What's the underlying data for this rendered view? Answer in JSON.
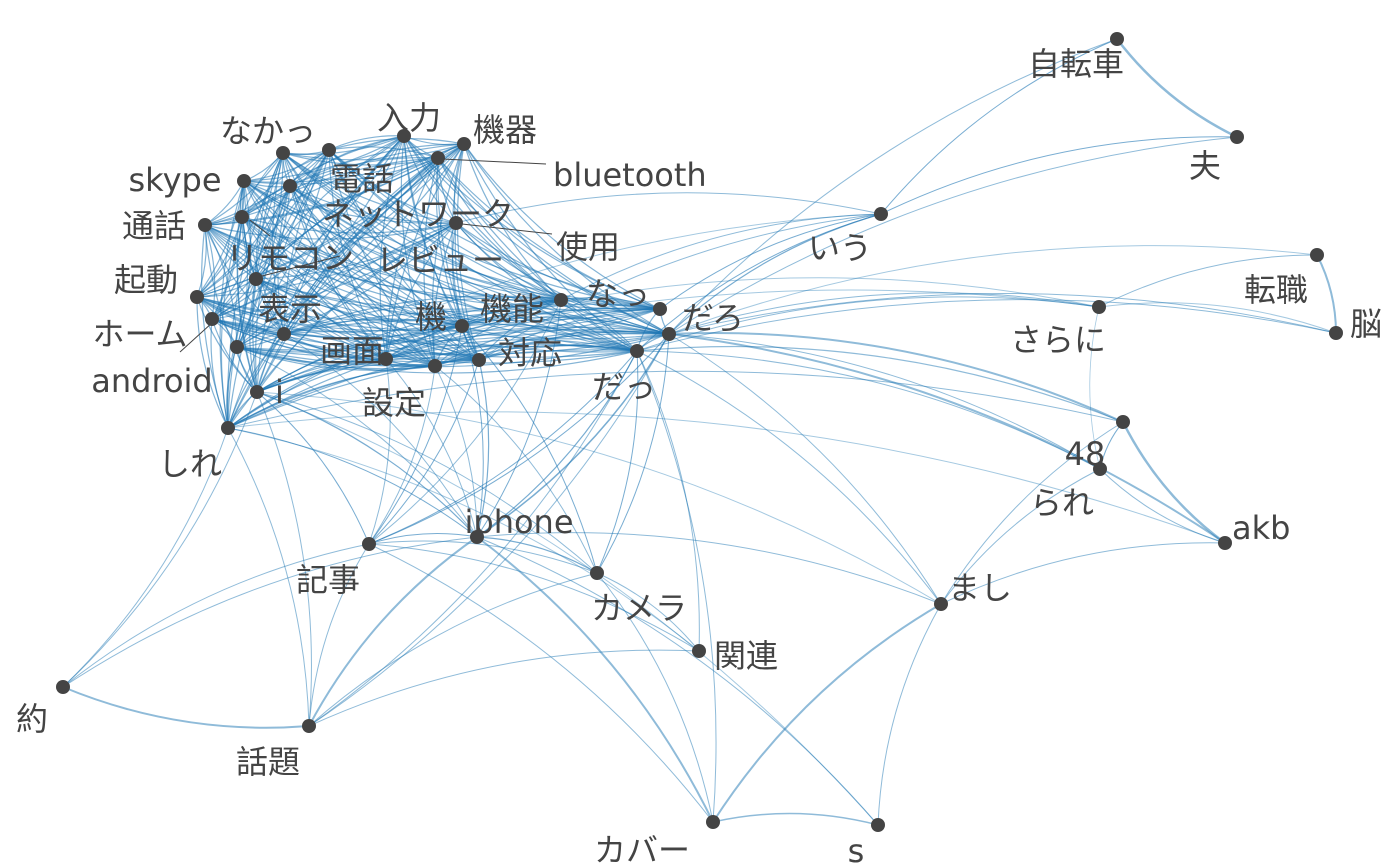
{
  "colors": {
    "edge": "#1f77b4",
    "node": "#444444",
    "label": "#444444",
    "background": "#ffffff"
  },
  "nodes": [
    {
      "id": "jitensha",
      "label": "自転車"
    },
    {
      "id": "otto",
      "label": "夫"
    },
    {
      "id": "iu",
      "label": "いう"
    },
    {
      "id": "noo",
      "label": "脳"
    },
    {
      "id": "tenshoku",
      "label": "転職"
    },
    {
      "id": "sarani",
      "label": "さらに"
    },
    {
      "id": "n48",
      "label": "48"
    },
    {
      "id": "rare",
      "label": "られ"
    },
    {
      "id": "akb",
      "label": "akb"
    },
    {
      "id": "mashi",
      "label": "まし"
    },
    {
      "id": "s",
      "label": "s"
    },
    {
      "id": "cover",
      "label": "カバー"
    },
    {
      "id": "kanren",
      "label": "関連"
    },
    {
      "id": "camera",
      "label": "カメラ"
    },
    {
      "id": "iphone",
      "label": "iphone"
    },
    {
      "id": "kiji",
      "label": "記事"
    },
    {
      "id": "yaku",
      "label": "約"
    },
    {
      "id": "wadai",
      "label": "話題"
    },
    {
      "id": "shire",
      "label": "しれ"
    },
    {
      "id": "i",
      "label": "i"
    },
    {
      "id": "android",
      "label": "android"
    },
    {
      "id": "home",
      "label": "ホーム"
    },
    {
      "id": "kidou",
      "label": "起動"
    },
    {
      "id": "tsuwa",
      "label": "通話"
    },
    {
      "id": "skype",
      "label": "skype"
    },
    {
      "id": "nakaxtu",
      "label": "なかっ"
    },
    {
      "id": "nyuryoku",
      "label": "入力"
    },
    {
      "id": "kiki",
      "label": "機器"
    },
    {
      "id": "bluetooth",
      "label": "bluetooth"
    },
    {
      "id": "denwa",
      "label": "電話"
    },
    {
      "id": "network",
      "label": "ネットワーク"
    },
    {
      "id": "remocon",
      "label": "リモコン"
    },
    {
      "id": "review",
      "label": "レビュー"
    },
    {
      "id": "shiyou",
      "label": "使用"
    },
    {
      "id": "naxtu",
      "label": "なっ"
    },
    {
      "id": "daro",
      "label": "だろ"
    },
    {
      "id": "daxtu",
      "label": "だっ"
    },
    {
      "id": "kinou",
      "label": "機能"
    },
    {
      "id": "ki",
      "label": "機"
    },
    {
      "id": "taiou",
      "label": "対応"
    },
    {
      "id": "gamen",
      "label": "画面"
    },
    {
      "id": "hyouji",
      "label": "表示"
    },
    {
      "id": "settei",
      "label": "設定"
    }
  ]
}
